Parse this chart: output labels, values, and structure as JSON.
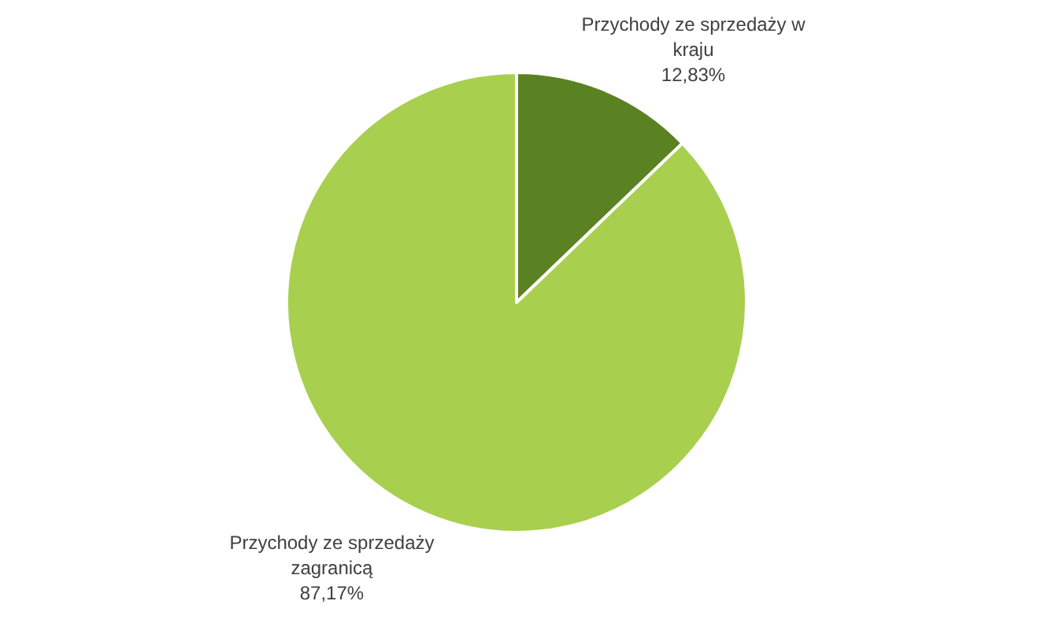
{
  "chart_data": {
    "type": "pie",
    "categories": [
      "Przychody ze sprzedaży w kraju",
      "Przychody ze sprzedaży zagranicą"
    ],
    "values": [
      12.83,
      87.17
    ],
    "colors": [
      "#5b8222",
      "#a8cf4e"
    ],
    "value_labels": [
      "12,83%",
      "87,17%"
    ]
  }
}
